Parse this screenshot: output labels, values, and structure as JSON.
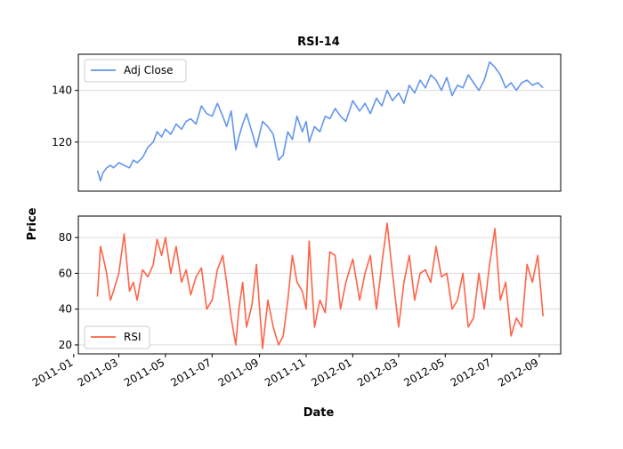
{
  "chart_data": [
    {
      "type": "line",
      "title": "RSI-14",
      "xlabel": "",
      "ylabel": "",
      "legend": "upper-left",
      "grid": "y",
      "ylim": [
        101,
        154
      ],
      "yticks": [
        120,
        140
      ],
      "series": [
        {
          "name": "Adj Close",
          "color": "#6495ed",
          "x": [
            "2011-02-01",
            "2011-02-05",
            "2011-02-08",
            "2011-02-13",
            "2011-02-18",
            "2011-02-22",
            "2011-03-01",
            "2011-03-08",
            "2011-03-15",
            "2011-03-20",
            "2011-03-25",
            "2011-04-01",
            "2011-04-08",
            "2011-04-15",
            "2011-04-20",
            "2011-04-26",
            "2011-05-01",
            "2011-05-08",
            "2011-05-15",
            "2011-05-22",
            "2011-05-28",
            "2011-06-03",
            "2011-06-10",
            "2011-06-17",
            "2011-06-24",
            "2011-07-01",
            "2011-07-08",
            "2011-07-15",
            "2011-07-20",
            "2011-07-26",
            "2011-08-01",
            "2011-08-05",
            "2011-08-10",
            "2011-08-15",
            "2011-08-22",
            "2011-08-28",
            "2011-09-05",
            "2011-09-12",
            "2011-09-19",
            "2011-09-26",
            "2011-10-02",
            "2011-10-08",
            "2011-10-14",
            "2011-10-20",
            "2011-10-27",
            "2011-11-01",
            "2011-11-05",
            "2011-11-12",
            "2011-11-19",
            "2011-11-26",
            "2011-12-02",
            "2011-12-09",
            "2011-12-16",
            "2011-12-23",
            "2012-01-01",
            "2012-01-10",
            "2012-01-17",
            "2012-01-24",
            "2012-02-01",
            "2012-02-08",
            "2012-02-15",
            "2012-02-22",
            "2012-03-01",
            "2012-03-08",
            "2012-03-15",
            "2012-03-22",
            "2012-03-29",
            "2012-04-05",
            "2012-04-12",
            "2012-04-19",
            "2012-04-26",
            "2012-05-03",
            "2012-05-10",
            "2012-05-17",
            "2012-05-24",
            "2012-05-31",
            "2012-06-07",
            "2012-06-14",
            "2012-06-21",
            "2012-06-28",
            "2012-07-05",
            "2012-07-12",
            "2012-07-19",
            "2012-07-26",
            "2012-08-02",
            "2012-08-09",
            "2012-08-16",
            "2012-08-23",
            "2012-08-30",
            "2012-09-06"
          ],
          "values": [
            109,
            105,
            108,
            110,
            111,
            110,
            112,
            111,
            110,
            113,
            112,
            114,
            118,
            120,
            124,
            122,
            125,
            123,
            127,
            125,
            128,
            129,
            127,
            134,
            131,
            130,
            135,
            130,
            126,
            132,
            117,
            122,
            127,
            131,
            124,
            118,
            128,
            126,
            123,
            113,
            115,
            124,
            121,
            130,
            124,
            128,
            120,
            126,
            124,
            130,
            129,
            133,
            130,
            128,
            136,
            132,
            135,
            131,
            137,
            134,
            140,
            136,
            139,
            135,
            142,
            139,
            144,
            141,
            146,
            144,
            140,
            145,
            138,
            142,
            141,
            146,
            143,
            140,
            144,
            151,
            149,
            146,
            141,
            143,
            140,
            143,
            144,
            142,
            143,
            141
          ]
        }
      ]
    },
    {
      "type": "line",
      "title": "",
      "xlabel": "Date",
      "ylabel": "Price",
      "legend": "lower-left",
      "grid": "y",
      "ylim": [
        15,
        92
      ],
      "yticks": [
        20,
        40,
        60,
        80
      ],
      "xticks": [
        "2011-01",
        "2011-03",
        "2011-05",
        "2011-07",
        "2011-09",
        "2011-11",
        "2012-01",
        "2012-03",
        "2012-05",
        "2012-07",
        "2012-09"
      ],
      "series": [
        {
          "name": "RSI",
          "color": "#ff6347",
          "x": [
            "2011-02-01",
            "2011-02-05",
            "2011-02-08",
            "2011-02-13",
            "2011-02-18",
            "2011-02-22",
            "2011-03-01",
            "2011-03-08",
            "2011-03-15",
            "2011-03-20",
            "2011-03-25",
            "2011-04-01",
            "2011-04-08",
            "2011-04-15",
            "2011-04-20",
            "2011-04-26",
            "2011-05-01",
            "2011-05-08",
            "2011-05-15",
            "2011-05-22",
            "2011-05-28",
            "2011-06-03",
            "2011-06-10",
            "2011-06-17",
            "2011-06-24",
            "2011-07-01",
            "2011-07-08",
            "2011-07-15",
            "2011-07-20",
            "2011-07-26",
            "2011-08-01",
            "2011-08-05",
            "2011-08-10",
            "2011-08-15",
            "2011-08-22",
            "2011-08-28",
            "2011-09-05",
            "2011-09-12",
            "2011-09-19",
            "2011-09-26",
            "2011-10-02",
            "2011-10-08",
            "2011-10-14",
            "2011-10-20",
            "2011-10-27",
            "2011-11-01",
            "2011-11-05",
            "2011-11-12",
            "2011-11-19",
            "2011-11-26",
            "2011-12-02",
            "2011-12-09",
            "2011-12-16",
            "2011-12-23",
            "2012-01-01",
            "2012-01-10",
            "2012-01-17",
            "2012-01-24",
            "2012-02-01",
            "2012-02-08",
            "2012-02-15",
            "2012-02-22",
            "2012-03-01",
            "2012-03-08",
            "2012-03-15",
            "2012-03-22",
            "2012-03-29",
            "2012-04-05",
            "2012-04-12",
            "2012-04-19",
            "2012-04-26",
            "2012-05-03",
            "2012-05-10",
            "2012-05-17",
            "2012-05-24",
            "2012-05-31",
            "2012-06-07",
            "2012-06-14",
            "2012-06-21",
            "2012-06-28",
            "2012-07-05",
            "2012-07-12",
            "2012-07-19",
            "2012-07-26",
            "2012-08-02",
            "2012-08-09",
            "2012-08-16",
            "2012-08-23",
            "2012-08-30",
            "2012-09-06"
          ],
          "values": [
            47,
            75,
            70,
            60,
            45,
            50,
            60,
            82,
            50,
            55,
            45,
            62,
            58,
            65,
            79,
            70,
            80,
            60,
            75,
            55,
            62,
            48,
            58,
            63,
            40,
            45,
            62,
            70,
            55,
            35,
            20,
            40,
            55,
            30,
            42,
            65,
            18,
            45,
            30,
            20,
            25,
            45,
            70,
            55,
            50,
            40,
            78,
            30,
            45,
            38,
            72,
            70,
            40,
            55,
            68,
            45,
            60,
            70,
            40,
            65,
            88,
            60,
            30,
            55,
            70,
            45,
            60,
            62,
            55,
            75,
            58,
            60,
            40,
            45,
            60,
            30,
            35,
            60,
            40,
            65,
            85,
            45,
            55,
            25,
            35,
            30,
            65,
            55,
            70,
            36
          ]
        }
      ]
    }
  ]
}
